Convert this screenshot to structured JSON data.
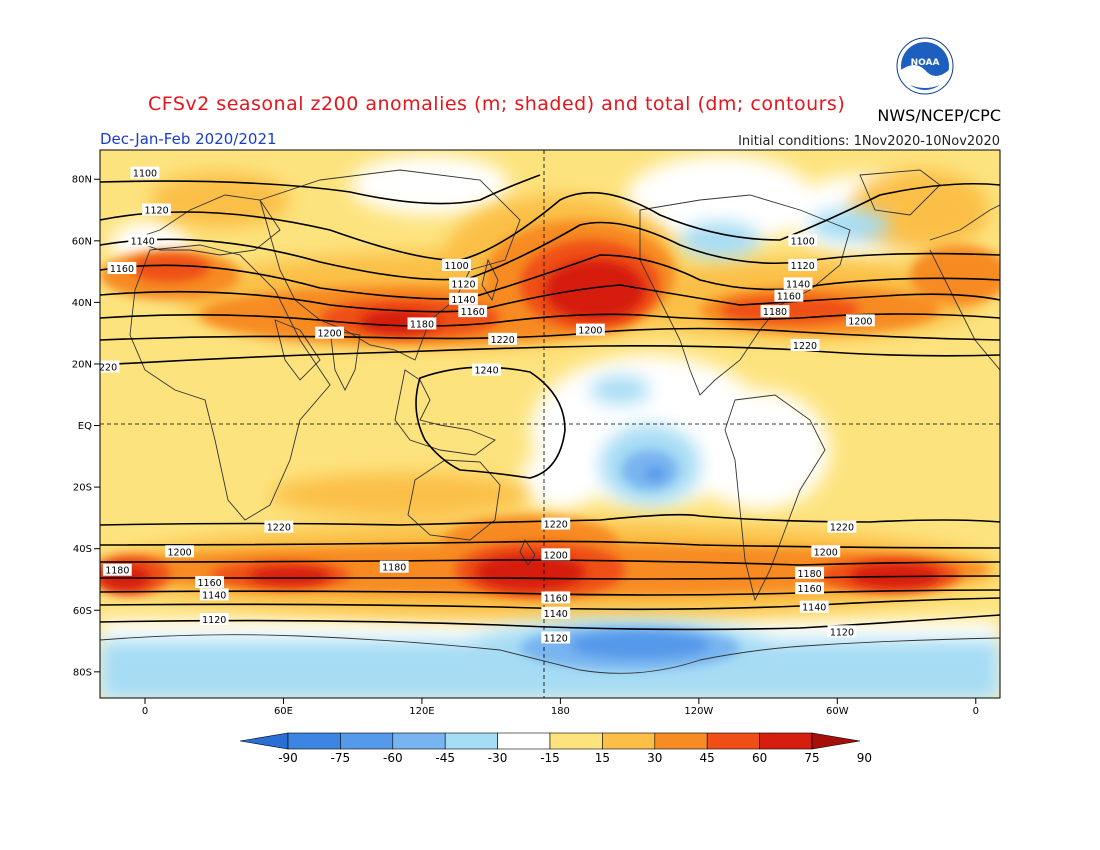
{
  "title": "CFSv2 seasonal z200 anomalies (m; shaded) and total (dm; contours)",
  "period": "Dec-Jan-Feb 2020/2021",
  "initial_conditions": "Initial conditions: 1Nov2020-10Nov2020",
  "agency": "NWS/NCEP/CPC",
  "logo_text": "NOAA",
  "map": {
    "lat_ticks": [
      {
        "lat": 80,
        "label": "80N"
      },
      {
        "lat": 60,
        "label": "60N"
      },
      {
        "lat": 40,
        "label": "40N"
      },
      {
        "lat": 20,
        "label": "20N"
      },
      {
        "lat": 0,
        "label": "EQ"
      },
      {
        "lat": -20,
        "label": "20S"
      },
      {
        "lat": -40,
        "label": "40S"
      },
      {
        "lat": -60,
        "label": "60S"
      },
      {
        "lat": -80,
        "label": "80S"
      }
    ],
    "lon_ticks": [
      {
        "lon": 0,
        "label": "0"
      },
      {
        "lon": 60,
        "label": "60E"
      },
      {
        "lon": 120,
        "label": "120E"
      },
      {
        "lon": 180,
        "label": "180"
      },
      {
        "lon": 240,
        "label": "120W"
      },
      {
        "lon": 300,
        "label": "60W"
      },
      {
        "lon": 360,
        "label": "0"
      }
    ],
    "contour_labels": [
      {
        "text": "1100",
        "lon": 0,
        "lat": 82
      },
      {
        "text": "1120",
        "lon": 5,
        "lat": 70
      },
      {
        "text": "1140",
        "lon": -1,
        "lat": 60
      },
      {
        "text": "1160",
        "lon": -10,
        "lat": 51
      },
      {
        "text": "1200",
        "lon": 80,
        "lat": 30
      },
      {
        "text": "1180",
        "lon": 120,
        "lat": 33
      },
      {
        "text": "1220",
        "lon": 155,
        "lat": 28
      },
      {
        "text": "1240",
        "lon": 148,
        "lat": 18
      },
      {
        "text": "1100",
        "lon": 135,
        "lat": 52
      },
      {
        "text": "1120",
        "lon": 138,
        "lat": 46
      },
      {
        "text": "1140",
        "lon": 138,
        "lat": 41
      },
      {
        "text": "1160",
        "lon": 142,
        "lat": 37
      },
      {
        "text": "1200",
        "lon": 193,
        "lat": 31
      },
      {
        "text": "1100",
        "lon": 285,
        "lat": 60
      },
      {
        "text": "1120",
        "lon": 285,
        "lat": 52
      },
      {
        "text": "1140",
        "lon": 283,
        "lat": 46
      },
      {
        "text": "1160",
        "lon": 279,
        "lat": 42
      },
      {
        "text": "1180",
        "lon": 273,
        "lat": 37
      },
      {
        "text": "1200",
        "lon": 310,
        "lat": 34
      },
      {
        "text": "1220",
        "lon": 286,
        "lat": 26
      },
      {
        "text": "220",
        "lon": -16,
        "lat": 19
      },
      {
        "text": "1220",
        "lon": 58,
        "lat": -33
      },
      {
        "text": "1220",
        "lon": 178,
        "lat": -32
      },
      {
        "text": "1220",
        "lon": 302,
        "lat": -33
      },
      {
        "text": "1200",
        "lon": 15,
        "lat": -41
      },
      {
        "text": "1200",
        "lon": 178,
        "lat": -42
      },
      {
        "text": "1200",
        "lon": 295,
        "lat": -41
      },
      {
        "text": "1180",
        "lon": -12,
        "lat": -47
      },
      {
        "text": "1180",
        "lon": 108,
        "lat": -46
      },
      {
        "text": "1180",
        "lon": 288,
        "lat": -48
      },
      {
        "text": "1160",
        "lon": 28,
        "lat": -51
      },
      {
        "text": "1160",
        "lon": 178,
        "lat": -56
      },
      {
        "text": "1160",
        "lon": 288,
        "lat": -53
      },
      {
        "text": "1140",
        "lon": 30,
        "lat": -55
      },
      {
        "text": "1140",
        "lon": 178,
        "lat": -61
      },
      {
        "text": "1140",
        "lon": 290,
        "lat": -59
      },
      {
        "text": "1120",
        "lon": 30,
        "lat": -63
      },
      {
        "text": "1120",
        "lon": 178,
        "lat": -69
      },
      {
        "text": "1120",
        "lon": 302,
        "lat": -67
      }
    ]
  },
  "colorbar": {
    "labels": [
      "-90",
      "-75",
      "-60",
      "-45",
      "-30",
      "-15",
      "15",
      "30",
      "45",
      "60",
      "75",
      "90"
    ],
    "colors": [
      "#2a6fd6",
      "#3c85e2",
      "#5599ea",
      "#78b4f0",
      "#a6dcf4",
      "#ffffff",
      "#fde37e",
      "#fbbf47",
      "#f78b24",
      "#ef4f16",
      "#d51e10",
      "#a51008"
    ]
  }
}
